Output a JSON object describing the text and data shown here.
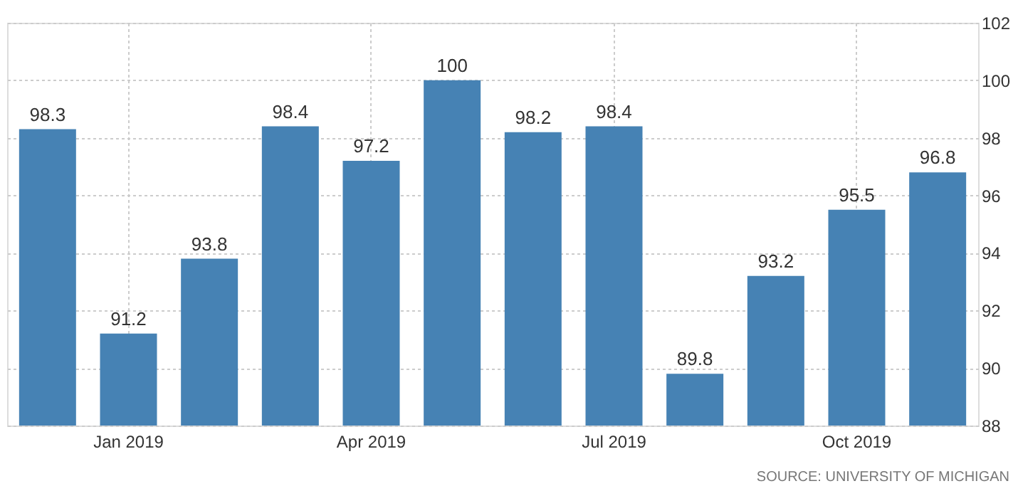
{
  "chart_data": {
    "type": "bar",
    "categories": [
      null,
      "Jan 2019",
      null,
      null,
      "Apr 2019",
      null,
      null,
      "Jul 2019",
      null,
      null,
      "Oct 2019",
      null
    ],
    "values": [
      98.3,
      91.2,
      93.8,
      98.4,
      97.2,
      100,
      98.2,
      98.4,
      89.8,
      93.2,
      95.5,
      96.8
    ],
    "color": "#4682b4",
    "ylim": [
      88,
      102
    ],
    "yticks": [
      88,
      90,
      92,
      94,
      96,
      98,
      100,
      102
    ],
    "grid": true,
    "data_labels": true,
    "annotations": [
      "SOURCE: UNIVERSITY OF MICHIGAN"
    ]
  }
}
